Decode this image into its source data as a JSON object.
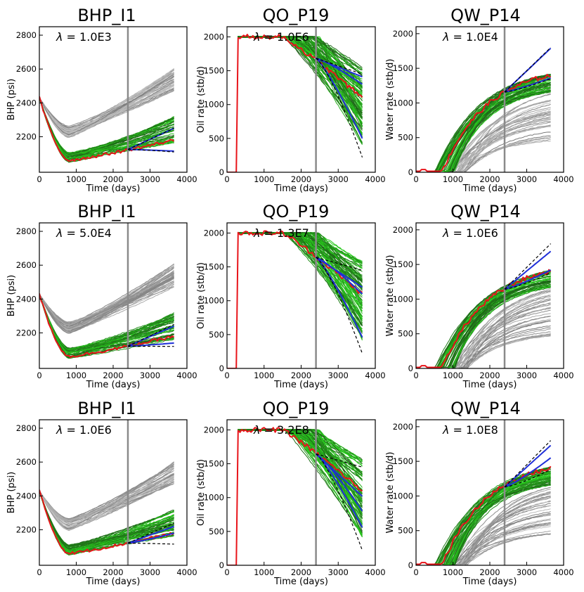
{
  "colors": {
    "observed": "#e8141a",
    "posterior": "#1f2fd8",
    "truth": "#000000",
    "prior_gray": "#8c8c8c",
    "prior_green": "#2ad61e",
    "history_line": "#8a8a8a"
  },
  "history_end_day": 2400,
  "chart_data": [
    {
      "type": "line",
      "id": "bhp1",
      "kind": "bhp",
      "title": "BHP_I1",
      "lambda": "1.0E3",
      "xlabel": "Time (days)",
      "ylabel": "BHP (psi)",
      "xlim": [
        0,
        4000
      ],
      "ylim": [
        1990,
        2850
      ],
      "xticks": [
        "0",
        "1000",
        "2000",
        "3000",
        "4000"
      ],
      "yticks": [
        "2200",
        "2400",
        "2600",
        "2800"
      ],
      "posterior_end": [
        2250,
        2115
      ],
      "truth_end": [
        2250,
        2110
      ]
    },
    {
      "type": "line",
      "id": "qo1",
      "kind": "oil",
      "title": "QO_P19",
      "lambda": "1.0E6",
      "xlabel": "Time (days)",
      "ylabel": "Oil rate (stb/d)",
      "xlim": [
        0,
        4000
      ],
      "ylim": [
        0,
        2150
      ],
      "xticks": [
        "0",
        "1000",
        "2000",
        "3000",
        "4000"
      ],
      "yticks": [
        "0",
        "500",
        "1000",
        "1500",
        "2000"
      ],
      "posterior_end": [
        1410,
        1300,
        500
      ],
      "truth_end": [
        1450,
        220
      ]
    },
    {
      "type": "line",
      "id": "qw1",
      "kind": "water",
      "title": "QW_P14",
      "lambda": "1.0E4",
      "xlabel": "Time (days)",
      "ylabel": "Water rate (stb/d)",
      "xlim": [
        0,
        4000
      ],
      "ylim": [
        0,
        2100
      ],
      "xticks": [
        "0",
        "1000",
        "2000",
        "3000",
        "4000"
      ],
      "yticks": [
        "0",
        "500",
        "1000",
        "1500",
        "2000"
      ],
      "posterior_end": [
        1790,
        1360
      ],
      "truth_end": [
        1800,
        1350
      ]
    },
    {
      "type": "line",
      "id": "bhp2",
      "kind": "bhp",
      "title": "BHP_I1",
      "lambda": "5.0E4",
      "xlabel": "Time (days)",
      "ylabel": "BHP (psi)",
      "xlim": [
        0,
        4000
      ],
      "ylim": [
        1990,
        2850
      ],
      "xticks": [
        "0",
        "1000",
        "2000",
        "3000",
        "4000"
      ],
      "yticks": [
        "2200",
        "2400",
        "2600",
        "2800"
      ],
      "posterior_end": [
        2240,
        2140
      ],
      "truth_end": [
        2250,
        2120
      ]
    },
    {
      "type": "line",
      "id": "qo2",
      "kind": "oil",
      "title": "QO_P19",
      "lambda": "1.3E7",
      "xlabel": "Time (days)",
      "ylabel": "Oil rate (stb/d)",
      "xlim": [
        0,
        4000
      ],
      "ylim": [
        0,
        2150
      ],
      "xticks": [
        "0",
        "1000",
        "2000",
        "3000",
        "4000"
      ],
      "yticks": [
        "0",
        "500",
        "1000",
        "1500",
        "2000"
      ],
      "posterior_end": [
        1200,
        1100,
        460
      ],
      "truth_end": [
        1450,
        220
      ]
    },
    {
      "type": "line",
      "id": "qw2",
      "kind": "water",
      "title": "QW_P14",
      "lambda": "1.0E6",
      "xlabel": "Time (days)",
      "ylabel": "Water rate (stb/d)",
      "xlim": [
        0,
        4000
      ],
      "ylim": [
        0,
        2100
      ],
      "xticks": [
        "0",
        "1000",
        "2000",
        "3000",
        "4000"
      ],
      "yticks": [
        "0",
        "500",
        "1000",
        "1500",
        "2000"
      ],
      "posterior_end": [
        1690,
        1420
      ],
      "truth_end": [
        1800,
        1380
      ]
    },
    {
      "type": "line",
      "id": "bhp3",
      "kind": "bhp",
      "title": "BHP_I1",
      "lambda": "1.0E6",
      "xlabel": "Time (days)",
      "ylabel": "BHP (psi)",
      "xlim": [
        0,
        4000
      ],
      "ylim": [
        1990,
        2850
      ],
      "xticks": [
        "0",
        "1000",
        "2000",
        "3000",
        "4000"
      ],
      "yticks": [
        "2200",
        "2400",
        "2600",
        "2800"
      ],
      "posterior_end": [
        2220,
        2180
      ],
      "truth_end": [
        2240,
        2115
      ]
    },
    {
      "type": "line",
      "id": "qo3",
      "kind": "oil",
      "title": "QO_P19",
      "lambda": "3.2E8",
      "xlabel": "Time (days)",
      "ylabel": "Oil rate (stb/d)",
      "xlim": [
        0,
        4000
      ],
      "ylim": [
        0,
        2150
      ],
      "xticks": [
        "0",
        "1000",
        "2000",
        "3000",
        "4000"
      ],
      "yticks": [
        "0",
        "500",
        "1000",
        "1500",
        "2000"
      ],
      "posterior_end": [
        1020,
        800,
        560
      ],
      "truth_end": [
        1450,
        220
      ]
    },
    {
      "type": "line",
      "id": "qw3",
      "kind": "water",
      "title": "QW_P14",
      "lambda": "1.0E8",
      "xlabel": "Time (days)",
      "ylabel": "Water rate (stb/d)",
      "xlim": [
        0,
        4000
      ],
      "ylim": [
        0,
        2100
      ],
      "xticks": [
        "0",
        "1000",
        "2000",
        "3000",
        "4000"
      ],
      "yticks": [
        "0",
        "500",
        "1000",
        "1500",
        "2000"
      ],
      "posterior_end": [
        1730,
        1550
      ],
      "truth_end": [
        1800,
        1380
      ]
    }
  ]
}
